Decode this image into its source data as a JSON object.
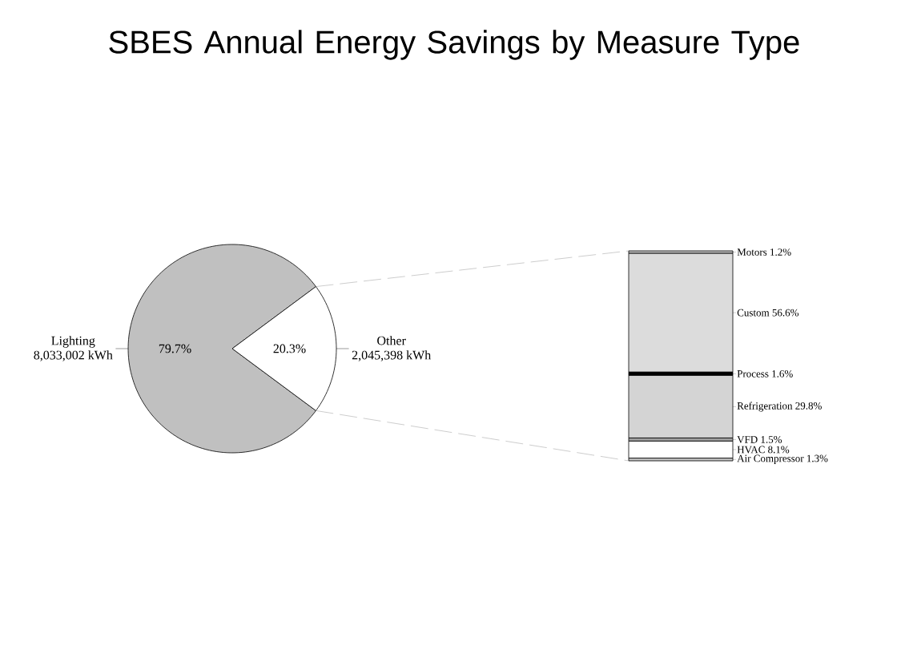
{
  "chart_data": [
    {
      "type": "pie",
      "title": "SBES Annual Energy Savings by Measure Type",
      "categories": [
        "Lighting",
        "Other"
      ],
      "values": [
        79.7,
        20.3
      ],
      "value_labels": [
        "79.7%",
        "20.3%"
      ],
      "colors": [
        "#c0c0c0",
        "#ffffff"
      ],
      "annotations": [
        "8,033,002 kWh",
        "2,045,398 kWh"
      ]
    },
    {
      "type": "bar",
      "stacked": true,
      "categories": [
        null
      ],
      "series": [
        {
          "color": "#c0c0c0",
          "values": [
            1.3
          ],
          "value_labels": [
            "Air Compressor 1.3%"
          ]
        },
        {
          "color": "#ffffff",
          "values": [
            8.1
          ],
          "value_labels": [
            "HVAC 8.1%"
          ]
        },
        {
          "color": "#a0a0a0",
          "values": [
            1.5
          ],
          "value_labels": [
            "VFD 1.5%"
          ]
        },
        {
          "color": "#d4d4d4",
          "values": [
            29.8
          ],
          "value_labels": [
            "Refrigeration 29.8%"
          ]
        },
        {
          "color": "#000000",
          "values": [
            1.6
          ],
          "value_labels": [
            "Process 1.6%"
          ]
        },
        {
          "color": "#dcdcdc",
          "values": [
            56.6
          ],
          "value_labels": [
            "Custom 56.6%"
          ]
        },
        {
          "color": "#c0c0c0",
          "values": [
            1.2
          ],
          "value_labels": [
            "Motors 1.2%"
          ]
        }
      ]
    }
  ]
}
